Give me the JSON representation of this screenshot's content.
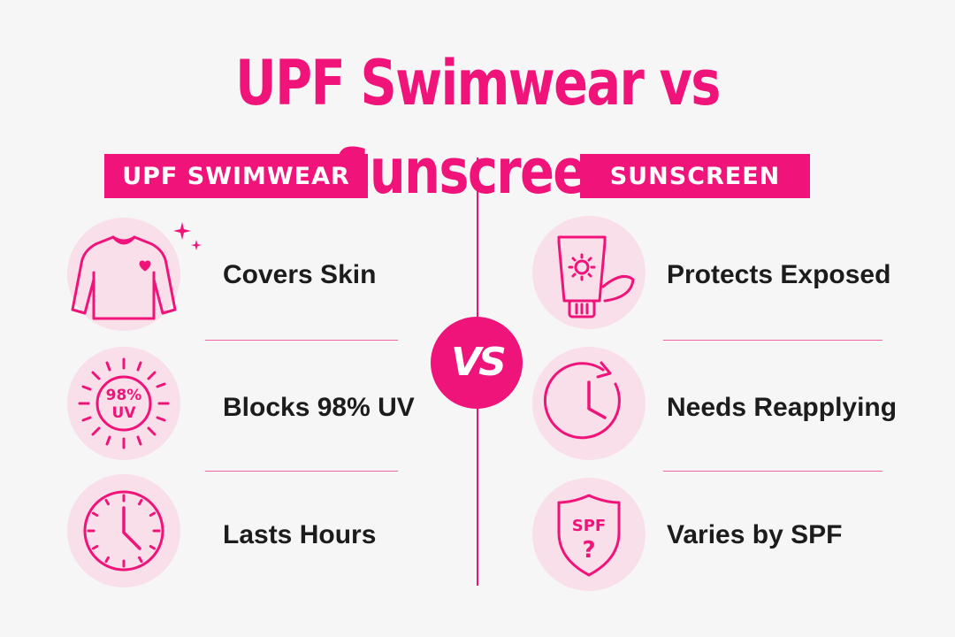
{
  "title": "UPF Swimwear vs Sunscreen",
  "vs_label": "VS",
  "left": {
    "header": "UPF SWIMWEAR",
    "items": [
      {
        "icon": "rash-guard-shirt-icon",
        "label": "Covers Skin"
      },
      {
        "icon": "uv-sun-icon",
        "badge_line1": "98%",
        "badge_line2": "UV",
        "label": "Blocks 98% UV"
      },
      {
        "icon": "clock-icon",
        "label": "Lasts Hours"
      }
    ]
  },
  "right": {
    "header": "SUNSCREEN",
    "items": [
      {
        "icon": "sunscreen-tube-icon",
        "label": "Protects Exposed"
      },
      {
        "icon": "reapply-clock-icon",
        "label": "Needs Reapplying"
      },
      {
        "icon": "spf-shield-icon",
        "badge_line1": "SPF",
        "badge_line2": "?",
        "label": "Varies by SPF"
      }
    ]
  },
  "colors": {
    "accent": "#f0147a",
    "circle": "#f9dfe9",
    "background": "#f7f6f7",
    "text": "#1c1c1c"
  }
}
